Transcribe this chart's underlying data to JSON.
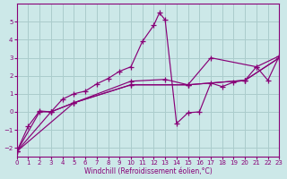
{
  "bg_color": "#cce8e8",
  "line_color": "#880077",
  "grid_color": "#aacccc",
  "xlabel": "Windchill (Refroidissement éolien,°C)",
  "segments": [
    [
      [
        0,
        -2.2
      ],
      [
        1,
        -0.8
      ],
      [
        2,
        0.05
      ],
      [
        3,
        0.0
      ],
      [
        4,
        0.7
      ],
      [
        5,
        1.0
      ],
      [
        6,
        1.15
      ],
      [
        7,
        1.55
      ],
      [
        8,
        1.85
      ],
      [
        9,
        2.25
      ],
      [
        10,
        2.5
      ],
      [
        11,
        3.9
      ],
      [
        12,
        4.8
      ],
      [
        12.5,
        5.5
      ],
      [
        13,
        5.1
      ],
      [
        14,
        -0.65
      ],
      [
        15,
        -0.05
      ],
      [
        16,
        0.0
      ],
      [
        17,
        1.6
      ],
      [
        18,
        1.4
      ],
      [
        19,
        1.65
      ],
      [
        20,
        1.75
      ],
      [
        21,
        2.5
      ],
      [
        22,
        1.75
      ],
      [
        23,
        3.1
      ]
    ],
    [
      [
        0,
        -2.2
      ],
      [
        2,
        0.0
      ],
      [
        3,
        0.0
      ],
      [
        5,
        0.5
      ],
      [
        10,
        1.7
      ],
      [
        13,
        1.8
      ],
      [
        15,
        1.5
      ],
      [
        17,
        3.0
      ],
      [
        21,
        2.5
      ],
      [
        23,
        3.1
      ]
    ],
    [
      [
        0,
        -2.2
      ],
      [
        3,
        0.0
      ],
      [
        5,
        0.5
      ],
      [
        10,
        1.5
      ],
      [
        15,
        1.5
      ],
      [
        20,
        1.75
      ],
      [
        23,
        3.0
      ]
    ],
    [
      [
        0,
        -2.2
      ],
      [
        5,
        0.5
      ],
      [
        10,
        1.5
      ],
      [
        15,
        1.5
      ],
      [
        20,
        1.75
      ],
      [
        23,
        3.0
      ]
    ]
  ],
  "xlim": [
    0,
    23
  ],
  "ylim": [
    -2.5,
    6.0
  ],
  "yticks": [
    -2,
    -1,
    0,
    1,
    2,
    3,
    4,
    5
  ],
  "xticks": [
    0,
    1,
    2,
    3,
    4,
    5,
    6,
    7,
    8,
    9,
    10,
    11,
    12,
    13,
    14,
    15,
    16,
    17,
    18,
    19,
    20,
    21,
    22,
    23
  ]
}
